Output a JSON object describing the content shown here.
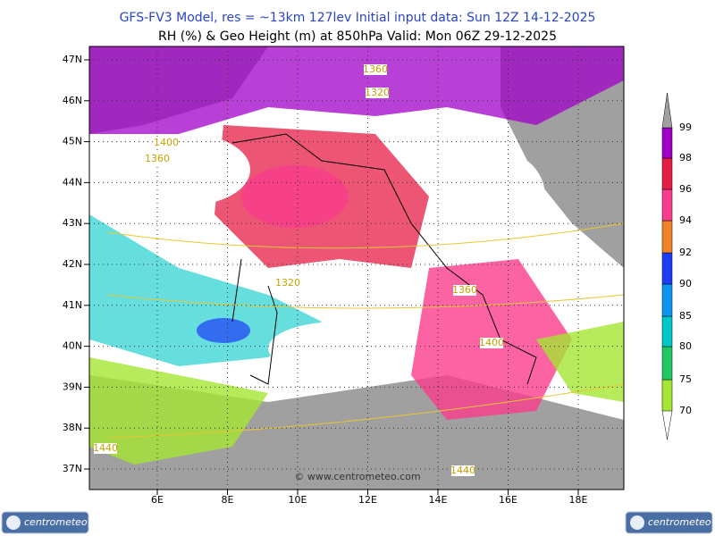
{
  "header": {
    "line1": "GFS-FV3 Model, res = ~13km 127lev    Initial input data: Sun 12Z 14-12-2025",
    "line2": "RH (%) & Geo Height (m) at 850hPa  Valid: Mon 06Z 29-12-2025"
  },
  "map": {
    "lat_labels": [
      "47N",
      "46N",
      "45N",
      "44N",
      "43N",
      "42N",
      "41N",
      "40N",
      "39N",
      "38N",
      "37N"
    ],
    "lon_labels": [
      "6E",
      "8E",
      "10E",
      "12E",
      "14E",
      "16E",
      "18E"
    ],
    "contour_labels": [
      "1360",
      "1320",
      "1400",
      "1360",
      "1320",
      "1360",
      "1400",
      "1440",
      "1440"
    ],
    "watermark": "© www.centrometeo.com"
  },
  "colorbar": {
    "levels": [
      "70",
      "75",
      "80",
      "85",
      "90",
      "92",
      "94",
      "96",
      "98",
      "99"
    ],
    "colors": [
      "#a5e632",
      "#1ec864",
      "#00c8c8",
      "#0a96f0",
      "#1e3cf5",
      "#f08228",
      "#fa3c8c",
      "#e61e46",
      "#a000c8",
      "#a0a0a0"
    ]
  },
  "logos": {
    "left": "centrometeo",
    "right": "centrometeo"
  }
}
